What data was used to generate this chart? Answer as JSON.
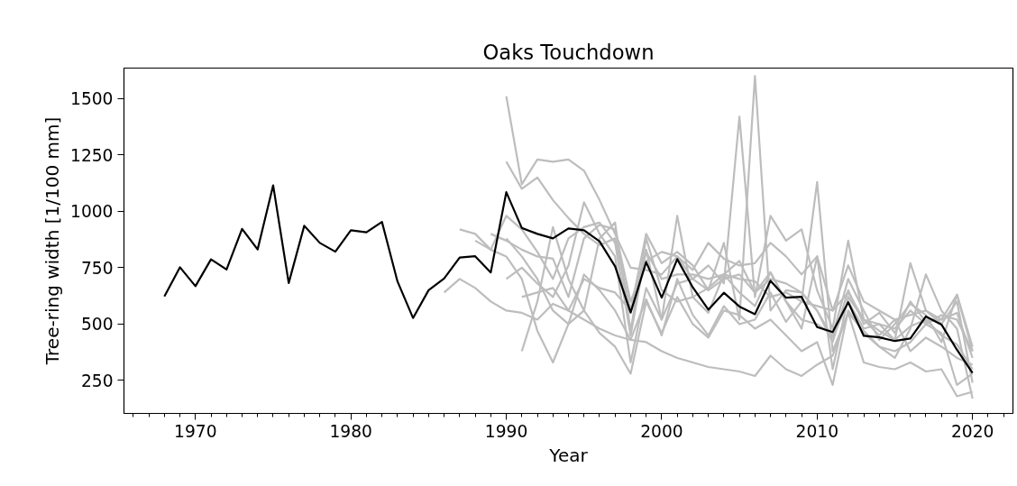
{
  "chart_data": {
    "type": "line",
    "title": "Oaks Touchdown",
    "xlabel": "Year",
    "ylabel": "Tree-ring width [1/100 mm]",
    "xlim": [
      1965.4,
      2022.6
    ],
    "ylim": [
      104,
      1635
    ],
    "xticks": [
      1970,
      1980,
      1990,
      2000,
      2010,
      2020,
      {
        "value": 1966,
        "label": null
      },
      {
        "value": 1967,
        "label": null
      },
      {
        "value": 1968,
        "label": null
      },
      {
        "value": 1969,
        "label": null
      },
      {
        "value": 1971,
        "label": null
      },
      {
        "value": 1972,
        "label": null
      },
      {
        "value": 1973,
        "label": null
      },
      {
        "value": 1974,
        "label": null
      },
      {
        "value": 1975,
        "label": null
      },
      {
        "value": 1976,
        "label": null
      },
      {
        "value": 1977,
        "label": null
      },
      {
        "value": 1978,
        "label": null
      },
      {
        "value": 1979,
        "label": null
      },
      {
        "value": 1981,
        "label": null
      },
      {
        "value": 1982,
        "label": null
      },
      {
        "value": 1983,
        "label": null
      },
      {
        "value": 1984,
        "label": null
      },
      {
        "value": 1985,
        "label": null
      },
      {
        "value": 1986,
        "label": null
      },
      {
        "value": 1987,
        "label": null
      },
      {
        "value": 1988,
        "label": null
      },
      {
        "value": 1989,
        "label": null
      },
      {
        "value": 1991,
        "label": null
      },
      {
        "value": 1992,
        "label": null
      },
      {
        "value": 1993,
        "label": null
      },
      {
        "value": 1994,
        "label": null
      },
      {
        "value": 1995,
        "label": null
      },
      {
        "value": 1996,
        "label": null
      },
      {
        "value": 1997,
        "label": null
      },
      {
        "value": 1998,
        "label": null
      },
      {
        "value": 1999,
        "label": null
      },
      {
        "value": 2001,
        "label": null
      },
      {
        "value": 2002,
        "label": null
      },
      {
        "value": 2003,
        "label": null
      },
      {
        "value": 2004,
        "label": null
      },
      {
        "value": 2005,
        "label": null
      },
      {
        "value": 2006,
        "label": null
      },
      {
        "value": 2007,
        "label": null
      },
      {
        "value": 2008,
        "label": null
      },
      {
        "value": 2009,
        "label": null
      },
      {
        "value": 2011,
        "label": null
      },
      {
        "value": 2012,
        "label": null
      },
      {
        "value": 2013,
        "label": null
      },
      {
        "value": 2014,
        "label": null
      },
      {
        "value": 2015,
        "label": null
      },
      {
        "value": 2016,
        "label": null
      },
      {
        "value": 2017,
        "label": null
      },
      {
        "value": 2018,
        "label": null
      },
      {
        "value": 2019,
        "label": null
      },
      {
        "value": 2021,
        "label": null
      },
      {
        "value": 2022,
        "label": null
      }
    ],
    "yticks": [
      250,
      500,
      750,
      1000,
      1250,
      1500
    ],
    "grid": false,
    "marker": "none",
    "line_style": "solid",
    "series": [
      {
        "color": "#bdbdbd",
        "x": [
          1990,
          1991,
          1992,
          1993,
          1994,
          1995,
          1996,
          1997,
          1998,
          1999,
          2000,
          2001,
          2002,
          2003,
          2004,
          2005,
          2006,
          2007,
          2008,
          2009,
          2010,
          2011,
          2012,
          2013,
          2014,
          2015,
          2016,
          2017,
          2018,
          2019,
          2020
        ],
        "values": [
          1510,
          1120,
          1230,
          1220,
          1230,
          1180,
          1050,
          900,
          750,
          740,
          720,
          800,
          700,
          760,
          680,
          1420,
          620,
          980,
          870,
          920,
          650,
          480,
          870,
          520,
          470,
          430,
          770,
          560,
          520,
          630,
          380
        ]
      },
      {
        "color": "#bdbdbd",
        "x": [
          1990,
          1991,
          1992,
          1993,
          1994,
          1995,
          1996,
          1997,
          1998,
          1999,
          2000,
          2001,
          2002,
          2003,
          2004,
          2005,
          2006,
          2007,
          2008,
          2009,
          2010,
          2011,
          2012,
          2013,
          2014,
          2015,
          2016,
          2017,
          2018,
          2019,
          2020
        ],
        "values": [
          1220,
          1100,
          1150,
          1050,
          970,
          900,
          850,
          880,
          560,
          900,
          770,
          820,
          760,
          650,
          700,
          720,
          640,
          700,
          680,
          640,
          560,
          440,
          600,
          480,
          500,
          430,
          490,
          520,
          450,
          410,
          300
        ]
      },
      {
        "color": "#bdbdbd",
        "x": [
          1987,
          1988,
          1989,
          1990,
          1991,
          1992,
          1993,
          1994,
          1995,
          1996,
          1997,
          1998,
          1999,
          2000,
          2001,
          2002,
          2003,
          2004,
          2005,
          2006,
          2007,
          2008,
          2009,
          2010,
          2011,
          2012,
          2013,
          2014,
          2015,
          2016,
          2017,
          2018,
          2019,
          2020
        ],
        "values": [
          920,
          900,
          830,
          980,
          920,
          820,
          700,
          880,
          930,
          950,
          860,
          450,
          830,
          520,
          680,
          700,
          650,
          860,
          520,
          1600,
          560,
          650,
          640,
          560,
          420,
          650,
          500,
          550,
          460,
          600,
          510,
          520,
          550,
          350
        ]
      },
      {
        "color": "#bdbdbd",
        "x": [
          1986,
          1987,
          1988,
          1989,
          1990,
          1991,
          1992,
          1993,
          1994,
          1995,
          1996,
          1997,
          1998,
          1999,
          2000,
          2001,
          2002,
          2003,
          2004,
          2005,
          2006,
          2007,
          2008,
          2009,
          2010,
          2011,
          2012,
          2013,
          2014,
          2015,
          2016,
          2017,
          2018,
          2019,
          2020
        ],
        "values": [
          640,
          700,
          660,
          600,
          560,
          550,
          520,
          590,
          560,
          520,
          480,
          450,
          430,
          420,
          380,
          350,
          330,
          310,
          300,
          290,
          270,
          360,
          300,
          270,
          320,
          360,
          550,
          330,
          310,
          300,
          330,
          290,
          300,
          180,
          200
        ]
      },
      {
        "color": "#bdbdbd",
        "x": [
          1988,
          1989,
          1990,
          1991,
          1992,
          1993,
          1994,
          1995,
          1996,
          1997,
          1998,
          1999,
          2000,
          2001,
          2002,
          2003,
          2004,
          2005,
          2006,
          2007,
          2008,
          2009,
          2010,
          2011,
          2012,
          2013,
          2014,
          2015,
          2016,
          2017,
          2018,
          2019,
          2020
        ],
        "values": [
          870,
          830,
          800,
          700,
          470,
          330,
          500,
          720,
          650,
          560,
          430,
          610,
          450,
          700,
          540,
          450,
          580,
          500,
          520,
          640,
          510,
          600,
          1130,
          380,
          550,
          470,
          400,
          350,
          480,
          720,
          560,
          480,
          170
        ]
      },
      {
        "color": "#bdbdbd",
        "x": [
          1991,
          1992,
          1993,
          1994,
          1995,
          1996,
          1997,
          1998,
          1999,
          2000,
          2001,
          2002,
          2003,
          2004,
          2005,
          2006,
          2007,
          2008,
          2009,
          2010,
          2011,
          2012,
          2013,
          2014,
          2015,
          2016,
          2017,
          2018,
          2019,
          2020
        ],
        "values": [
          380,
          600,
          930,
          700,
          560,
          880,
          950,
          470,
          880,
          650,
          600,
          620,
          550,
          720,
          640,
          580,
          730,
          600,
          520,
          500,
          450,
          700,
          560,
          430,
          500,
          590,
          540,
          420,
          630,
          400
        ]
      },
      {
        "color": "#bdbdbd",
        "x": [
          1990,
          1991,
          1992,
          1993,
          1994,
          1995,
          1996,
          1997,
          1998,
          1999,
          2000,
          2001,
          2002,
          2003,
          2004,
          2005,
          2006,
          2007,
          2008,
          2009,
          2010,
          2011,
          2012,
          2013,
          2014,
          2015,
          2016,
          2017,
          2018,
          2019,
          2020
        ],
        "values": [
          700,
          750,
          680,
          620,
          760,
          1040,
          900,
          800,
          330,
          660,
          520,
          980,
          620,
          660,
          720,
          780,
          640,
          730,
          600,
          480,
          800,
          300,
          620,
          520,
          450,
          520,
          380,
          440,
          400,
          350,
          320
        ]
      },
      {
        "color": "#bdbdbd",
        "x": [
          1991,
          1992,
          1993,
          1994,
          1995,
          1996,
          1997,
          1998,
          1999,
          2000,
          2001,
          2002,
          2003,
          2004,
          2005,
          2006,
          2007,
          2008,
          2009,
          2010,
          2011,
          2012,
          2013,
          2014,
          2015,
          2016,
          2017,
          2018,
          2019,
          2020
        ],
        "values": [
          620,
          640,
          660,
          560,
          700,
          660,
          640,
          560,
          820,
          700,
          720,
          720,
          700,
          720,
          700,
          690,
          620,
          640,
          600,
          580,
          560,
          640,
          520,
          500,
          480,
          560,
          500,
          540,
          520,
          380
        ]
      },
      {
        "color": "#bdbdbd",
        "x": [
          1990,
          1991,
          1992,
          1993,
          1994,
          1995,
          1996,
          1997,
          1998,
          1999,
          2000,
          2001,
          2002,
          2003,
          2004,
          2005,
          2006,
          2007,
          2008,
          2009,
          2010,
          2011,
          2012,
          2013,
          2014,
          2015,
          2016,
          2017,
          2018,
          2019,
          2020
        ],
        "values": [
          880,
          800,
          700,
          560,
          500,
          560,
          460,
          400,
          280,
          600,
          460,
          620,
          500,
          440,
          560,
          540,
          480,
          520,
          450,
          380,
          420,
          230,
          560,
          460,
          400,
          380,
          420,
          500,
          460,
          230,
          280
        ]
      },
      {
        "color": "#bdbdbd",
        "x": [
          1989,
          1990,
          1991,
          1992,
          1993,
          1994,
          1995,
          1996,
          1997,
          1998,
          1999,
          2000,
          2001,
          2002,
          2003,
          2004,
          2005,
          2006,
          2007,
          2008,
          2009,
          2010,
          2011,
          2012,
          2013,
          2014,
          2015,
          2016,
          2017,
          2018,
          2019,
          2020
        ],
        "values": [
          900,
          870,
          830,
          800,
          790,
          620,
          880,
          940,
          920,
          600,
          780,
          820,
          800,
          740,
          860,
          790,
          760,
          770,
          860,
          800,
          720,
          800,
          560,
          760,
          600,
          560,
          520,
          540,
          560,
          500,
          600,
          240
        ]
      },
      {
        "color": "#000000",
        "x": [
          1968,
          1969,
          1970,
          1971,
          1972,
          1973,
          1974,
          1975,
          1976,
          1977,
          1978,
          1979,
          1980,
          1981,
          1982,
          1983,
          1984,
          1985,
          1986,
          1987,
          1988,
          1989,
          1990,
          1991,
          1992,
          1993,
          1994,
          1995,
          1996,
          1997,
          1998,
          1999,
          2000,
          2001,
          2002,
          2003,
          2004,
          2005,
          2006,
          2007,
          2008,
          2009,
          2010,
          2011,
          2012,
          2013,
          2014,
          2015,
          2016,
          2017,
          2018,
          2019,
          2020
        ],
        "values": [
          623,
          752,
          668,
          787,
          742,
          922,
          831,
          1115,
          682,
          936,
          860,
          821,
          916,
          907,
          953,
          689,
          527,
          650,
          702,
          795,
          801,
          729,
          1085,
          926,
          900,
          880,
          924,
          916,
          867,
          756,
          551,
          775,
          617,
          788,
          663,
          564,
          639,
          578,
          544,
          692,
          617,
          621,
          487,
          465,
          597,
          448,
          441,
          425,
          436,
          534,
          498,
          386,
          283
        ]
      }
    ]
  }
}
